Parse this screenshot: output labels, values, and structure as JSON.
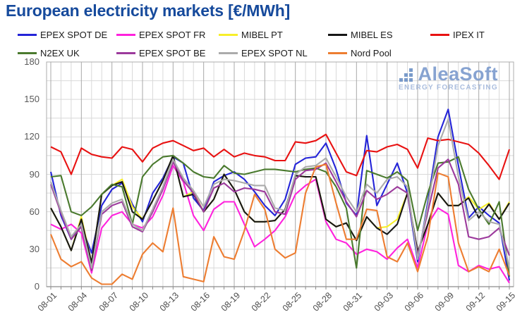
{
  "header": {
    "title": "European electricity markets [€/MWh]"
  },
  "watermark": {
    "name": "AleaSoft",
    "tagline": "ENERGY FORECASTING"
  },
  "ui": {
    "title_color": "#164a9c",
    "axis_label_color": "#595959",
    "grid_minor_color": "#d9d9d9",
    "grid_major_color": "#a9a9a9",
    "plot_border_color": "#adadad",
    "axis_line_color": "#8c8c8c"
  },
  "chart_data": {
    "type": "line",
    "title": "European electricity markets [€/MWh]",
    "ylabel": "",
    "xlabel": "",
    "ylim": [
      0,
      180
    ],
    "y_ticks": [
      0,
      30,
      60,
      90,
      120,
      150,
      180
    ],
    "y_minor_step": 15,
    "x_days": 46,
    "x_tick_every": 3,
    "x_tick_labels": [
      "08-01",
      "08-04",
      "08-07",
      "08-10",
      "08-13",
      "08-16",
      "08-19",
      "08-22",
      "08-25",
      "08-28",
      "08-31",
      "09-03",
      "09-06",
      "09-09",
      "09-12",
      "09-15"
    ],
    "grid": "on",
    "legend_position": "top",
    "units": "€/MWh",
    "series": [
      {
        "name": "EPEX SPOT DE",
        "color": "#2424d8",
        "values": [
          92,
          57,
          38,
          49,
          27,
          65,
          78,
          83,
          66,
          52,
          75,
          87,
          104,
          99,
          71,
          61,
          84,
          89,
          92,
          86,
          76,
          65,
          57,
          70,
          98,
          103,
          104,
          115,
          94,
          67,
          57,
          121,
          65,
          82,
          99,
          75,
          20,
          68,
          120,
          142,
          97,
          55,
          64,
          57,
          51,
          5
        ]
      },
      {
        "name": "EPEX SPOT FR",
        "color": "#ff22dd",
        "values": [
          50,
          46,
          50,
          43,
          11,
          47,
          57,
          60,
          50,
          47,
          56,
          73,
          97,
          84,
          57,
          45,
          62,
          68,
          68,
          50,
          32,
          38,
          45,
          56,
          74,
          81,
          86,
          52,
          38,
          35,
          26,
          30,
          28,
          22,
          31,
          38,
          15,
          50,
          63,
          58,
          17,
          12,
          17,
          14,
          16,
          3
        ]
      },
      {
        "name": "MIBEL PT",
        "color": "#f7ef2a",
        "values": [
          63,
          48,
          29,
          56,
          19,
          74,
          81,
          86,
          64,
          54,
          69,
          85,
          105,
          72,
          76,
          60,
          70,
          90,
          78,
          60,
          52,
          52,
          53,
          62,
          89,
          88,
          88,
          54,
          48,
          51,
          37,
          56,
          47,
          48,
          54,
          75,
          28,
          50,
          75,
          65,
          65,
          72,
          62,
          67,
          54,
          68
        ]
      },
      {
        "name": "MIBEL ES",
        "color": "#161616",
        "values": [
          63,
          48,
          29,
          54,
          19,
          74,
          81,
          84,
          60,
          54,
          69,
          85,
          105,
          72,
          74,
          60,
          70,
          90,
          78,
          60,
          52,
          52,
          53,
          62,
          89,
          88,
          88,
          54,
          48,
          51,
          37,
          56,
          47,
          42,
          50,
          75,
          28,
          50,
          75,
          65,
          65,
          71,
          55,
          66,
          54,
          67
        ]
      },
      {
        "name": "IPEX IT",
        "color": "#e81212",
        "values": [
          112,
          108,
          90,
          111,
          106,
          104,
          103,
          112,
          110,
          100,
          111,
          115,
          117,
          113,
          109,
          111,
          104,
          110,
          104,
          107,
          105,
          104,
          101,
          101,
          116,
          115,
          117,
          122,
          107,
          92,
          89,
          109,
          108,
          112,
          114,
          110,
          95,
          119,
          117,
          118,
          116,
          114,
          107,
          97,
          86,
          110
        ]
      },
      {
        "name": "N2EX UK",
        "color": "#4a7a2e",
        "values": [
          88,
          89,
          60,
          57,
          64,
          74,
          82,
          80,
          50,
          88,
          98,
          104,
          105,
          99,
          92,
          88,
          87,
          97,
          91,
          90,
          92,
          94,
          94,
          93,
          92,
          94,
          95,
          92,
          80,
          63,
          15,
          93,
          90,
          87,
          92,
          85,
          45,
          75,
          99,
          100,
          104,
          78,
          62,
          50,
          68,
          8
        ]
      },
      {
        "name": "EPEX SPOT BE",
        "color": "#9c3a9c",
        "values": [
          82,
          59,
          38,
          48,
          13,
          58,
          65,
          68,
          48,
          44,
          60,
          78,
          100,
          85,
          75,
          60,
          79,
          83,
          76,
          79,
          78,
          76,
          60,
          58,
          86,
          93,
          94,
          99,
          84,
          68,
          56,
          77,
          70,
          74,
          80,
          75,
          25,
          60,
          95,
          102,
          82,
          40,
          38,
          40,
          47,
          25
        ]
      },
      {
        "name": "EPEX SPOT NL",
        "color": "#ababab",
        "values": [
          84,
          61,
          40,
          50,
          15,
          60,
          67,
          70,
          50,
          45,
          62,
          80,
          102,
          87,
          77,
          64,
          82,
          86,
          85,
          83,
          81,
          81,
          63,
          61,
          90,
          96,
          97,
          103,
          88,
          72,
          60,
          82,
          75,
          86,
          88,
          80,
          22,
          65,
          113,
          134,
          88,
          53,
          60,
          52,
          50,
          15
        ]
      },
      {
        "name": "Nord Pool",
        "color": "#ed7d31",
        "values": [
          42,
          22,
          16,
          20,
          7,
          2,
          2,
          10,
          6,
          26,
          35,
          28,
          63,
          8,
          6,
          4,
          40,
          24,
          22,
          45,
          74,
          62,
          30,
          23,
          27,
          75,
          96,
          98,
          67,
          38,
          38,
          62,
          61,
          24,
          20,
          35,
          12,
          40,
          91,
          88,
          35,
          12,
          16,
          12,
          30,
          9
        ]
      }
    ]
  }
}
